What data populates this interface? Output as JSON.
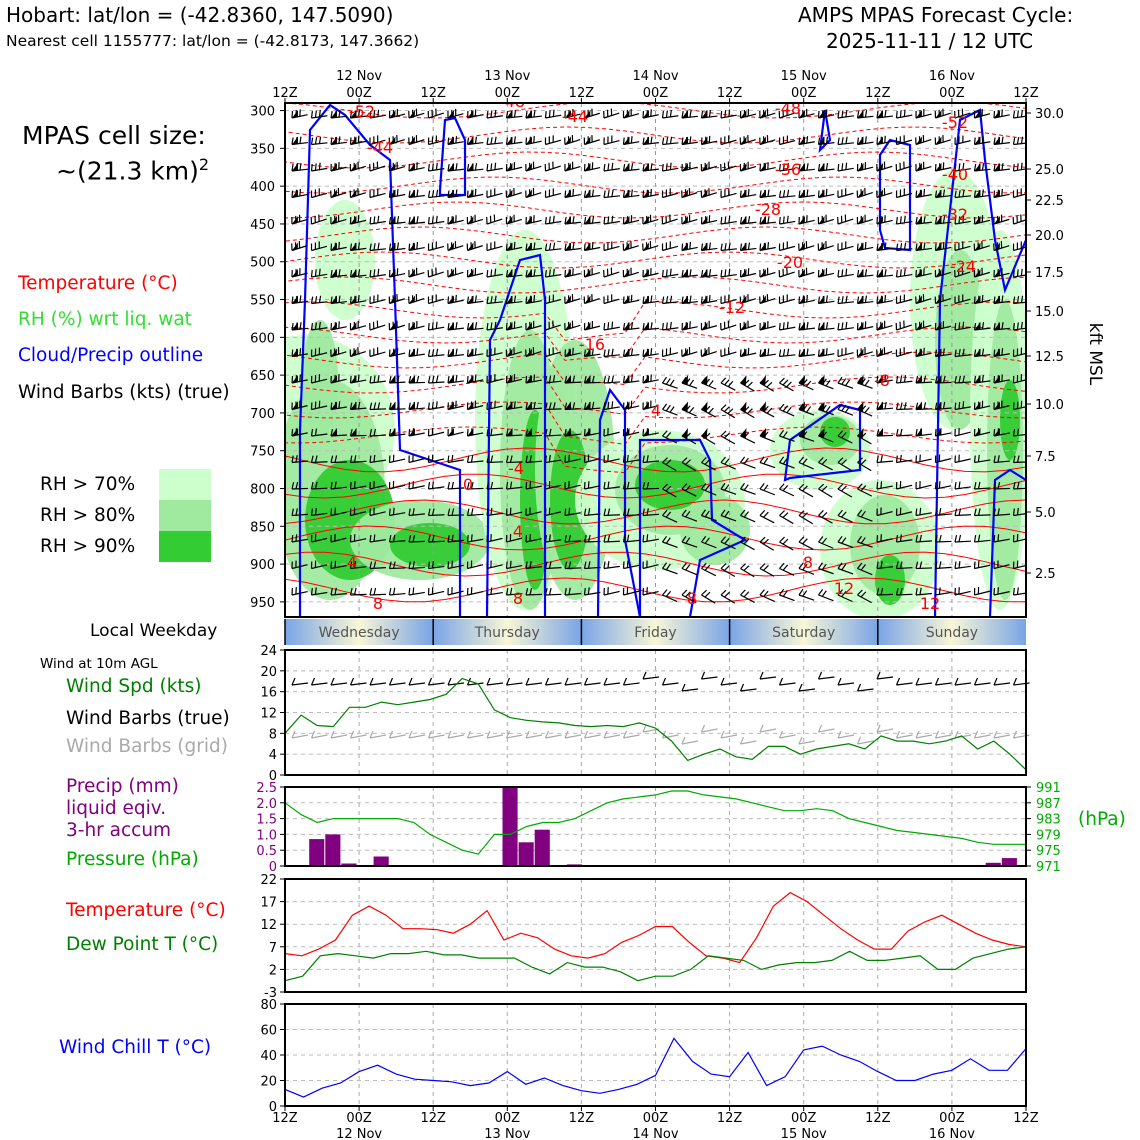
{
  "header": {
    "title_left": "Hobart: lat/lon = (-42.8360, 147.5090)",
    "subtitle_left": "Nearest cell 1155777: lat/lon = (-42.8173, 147.3662)",
    "title_right_1": "AMPS MPAS Forecast Cycle:",
    "title_right_2": "2025-11-11 / 12 UTC"
  },
  "legend": {
    "cell_size_1": "MPAS cell size:",
    "cell_size_2": "~(21.3 km)",
    "cell_size_sup": "2",
    "temperature": "Temperature (°C)",
    "rh": "RH (%) wrt liq. wat",
    "cloud": "Cloud/Precip outline",
    "wind": "Wind Barbs (kts) (true)",
    "rh70": "RH > 70%",
    "rh80": "RH > 80%",
    "rh90": "RH > 90%",
    "colors": {
      "rh70": "#ccffcc",
      "rh80": "#a0eaa0",
      "rh90": "#33cc33",
      "temp": "#ff0000",
      "cloud": "#0000ff"
    }
  },
  "time_axis": {
    "top_ticks": [
      "12Z",
      "00Z",
      "12Z",
      "00Z",
      "12Z",
      "00Z",
      "12Z",
      "00Z",
      "12Z",
      "00Z",
      "12Z"
    ],
    "days": [
      "12 Nov",
      "13 Nov",
      "14 Nov",
      "15 Nov",
      "16 Nov"
    ]
  },
  "weekday": {
    "label": "Local Weekday",
    "days": [
      "Wednesday",
      "Thursday",
      "Friday",
      "Saturday",
      "Sunday"
    ]
  },
  "panel_labels": {
    "wind10m": "Wind at 10m AGL",
    "wind_spd": "Wind Spd (kts)",
    "barbs_true": "Wind Barbs (true)",
    "barbs_grid": "Wind Barbs (grid)",
    "precip_1": "Precip (mm)",
    "precip_2": "liquid eqiv.",
    "precip_3": "3-hr accum",
    "pressure": "Pressure (hPa)",
    "pressure_unit": "(hPa)",
    "temp": "Temperature (°C)",
    "dew": "Dew Point T (°C)",
    "chill": "Wind Chill T (°C)",
    "kft": "kft MSL"
  },
  "chart_data": [
    {
      "type": "heatmap",
      "name": "time-height cross section",
      "y_axis_left": {
        "label": "",
        "ticks": [
          "300",
          "350",
          "400",
          "450",
          "500",
          "550",
          "600",
          "650",
          "700",
          "750",
          "800",
          "850",
          "900",
          "950"
        ],
        "ylim": [
          970,
          290
        ]
      },
      "y_axis_right": {
        "label": "kft MSL",
        "ticks": [
          "30.0",
          "25.0",
          "22.5",
          "20.0",
          "17.5",
          "15.0",
          "12.5",
          "10.0",
          "7.5",
          "5.0",
          "2.5"
        ]
      },
      "temperature_contour_labels": [
        "-52",
        "-44",
        "-48",
        "-44",
        "-48",
        "-52",
        "-36",
        "-40",
        "-28",
        "-32",
        "-20",
        "-24",
        "-12",
        "-16",
        "-8",
        "-4",
        "0",
        "4",
        "4",
        "8",
        "8",
        "8",
        "12",
        "12",
        "8",
        "4"
      ]
    },
    {
      "type": "line",
      "name": "wind speed 10m",
      "ylim": [
        0,
        24
      ],
      "yticks": [
        "0",
        "4",
        "8",
        "12",
        "16",
        "20",
        "24"
      ],
      "series": [
        {
          "name": "Wind Spd (kts)",
          "values": [
            8,
            11.5,
            9.5,
            9.3,
            13,
            13,
            14,
            13.5,
            14,
            14.5,
            15.5,
            18.5,
            17.5,
            12.5,
            11,
            10.5,
            10.2,
            10,
            9.5,
            9.3,
            9.5,
            9.3,
            10,
            9,
            6.5,
            2.8,
            4,
            5,
            3.5,
            3,
            5.5,
            5.5,
            4,
            5,
            5.5,
            6,
            5,
            7.5,
            6.5,
            6.5,
            6,
            6.5,
            7.5,
            5,
            6.5,
            4,
            1
          ]
        }
      ]
    },
    {
      "type": "bar",
      "name": "precip and pressure",
      "ylim": [
        0,
        2.5
      ],
      "yticks": [
        "0",
        "0.5",
        "1.0",
        "1.5",
        "2.0",
        "2.5"
      ],
      "ylim_right": [
        971,
        991
      ],
      "yticks_right": [
        "971",
        "975",
        "979",
        "983",
        "987",
        "991"
      ],
      "precip_values": [
        0,
        0,
        0.85,
        1.0,
        0.08,
        0,
        0.3,
        0,
        0,
        0,
        0,
        0,
        0,
        0,
        2.5,
        0.75,
        1.15,
        0,
        0.05,
        0,
        0,
        0,
        0,
        0,
        0,
        0,
        0,
        0,
        0,
        0,
        0,
        0,
        0,
        0,
        0,
        0,
        0,
        0,
        0,
        0,
        0,
        0,
        0,
        0,
        0.1,
        0.25,
        0
      ],
      "pressure_values": [
        987,
        984,
        982,
        983,
        983,
        983,
        983,
        983,
        982,
        979,
        977,
        975,
        974,
        979,
        979,
        981,
        982,
        982,
        983,
        985,
        987,
        988,
        988.5,
        989,
        990,
        990,
        989,
        988.5,
        988,
        987,
        986,
        985,
        985,
        985.5,
        985,
        983,
        982,
        981,
        980,
        979.5,
        979,
        978.5,
        978,
        977,
        976.5,
        976.5,
        976.5
      ]
    },
    {
      "type": "line",
      "name": "temperature and dew point",
      "ylim": [
        -3,
        22
      ],
      "yticks": [
        "-3",
        "2",
        "7",
        "12",
        "17",
        "22"
      ],
      "series": [
        {
          "name": "Temperature (°C)",
          "values": [
            5.5,
            5,
            6.5,
            8.5,
            14,
            16,
            14,
            11,
            11,
            10.8,
            10,
            12,
            15,
            8.5,
            10,
            9,
            6.5,
            5,
            4.5,
            5.5,
            8,
            9.5,
            11.5,
            11.5,
            8,
            5,
            4.5,
            3.5,
            9,
            16,
            19,
            17,
            14,
            11,
            8.5,
            6.5,
            6.5,
            10.5,
            12.5,
            14,
            12,
            10,
            8.5,
            7.5,
            7
          ]
        },
        {
          "name": "Dew Point T (°C)",
          "values": [
            -0.5,
            0.5,
            5,
            5.5,
            5,
            4.5,
            5.5,
            5.5,
            6,
            5.2,
            5.2,
            4.5,
            4.5,
            4.5,
            2.5,
            1,
            3.5,
            2.5,
            2.5,
            1.5,
            -0.5,
            0.5,
            0.5,
            2,
            5,
            4.5,
            4,
            2,
            3,
            3.5,
            3.5,
            4,
            6,
            4,
            4,
            4.5,
            5,
            2,
            2,
            4.5,
            5.5,
            6.5,
            7
          ]
        }
      ]
    },
    {
      "type": "line",
      "name": "wind chill",
      "ylim": [
        0,
        80
      ],
      "yticks": [
        "0",
        "20",
        "40",
        "60",
        "80"
      ],
      "series": [
        {
          "name": "Wind Chill T (°C)",
          "values": [
            13,
            7,
            14,
            18,
            27,
            32,
            25,
            21,
            20,
            19,
            16,
            18,
            27,
            17,
            22,
            16,
            12,
            10,
            13,
            17,
            24,
            53,
            35,
            25,
            23,
            42,
            16,
            23,
            44,
            47,
            40,
            35,
            27,
            20,
            20,
            25,
            28,
            37,
            28,
            28,
            45
          ]
        }
      ]
    }
  ]
}
